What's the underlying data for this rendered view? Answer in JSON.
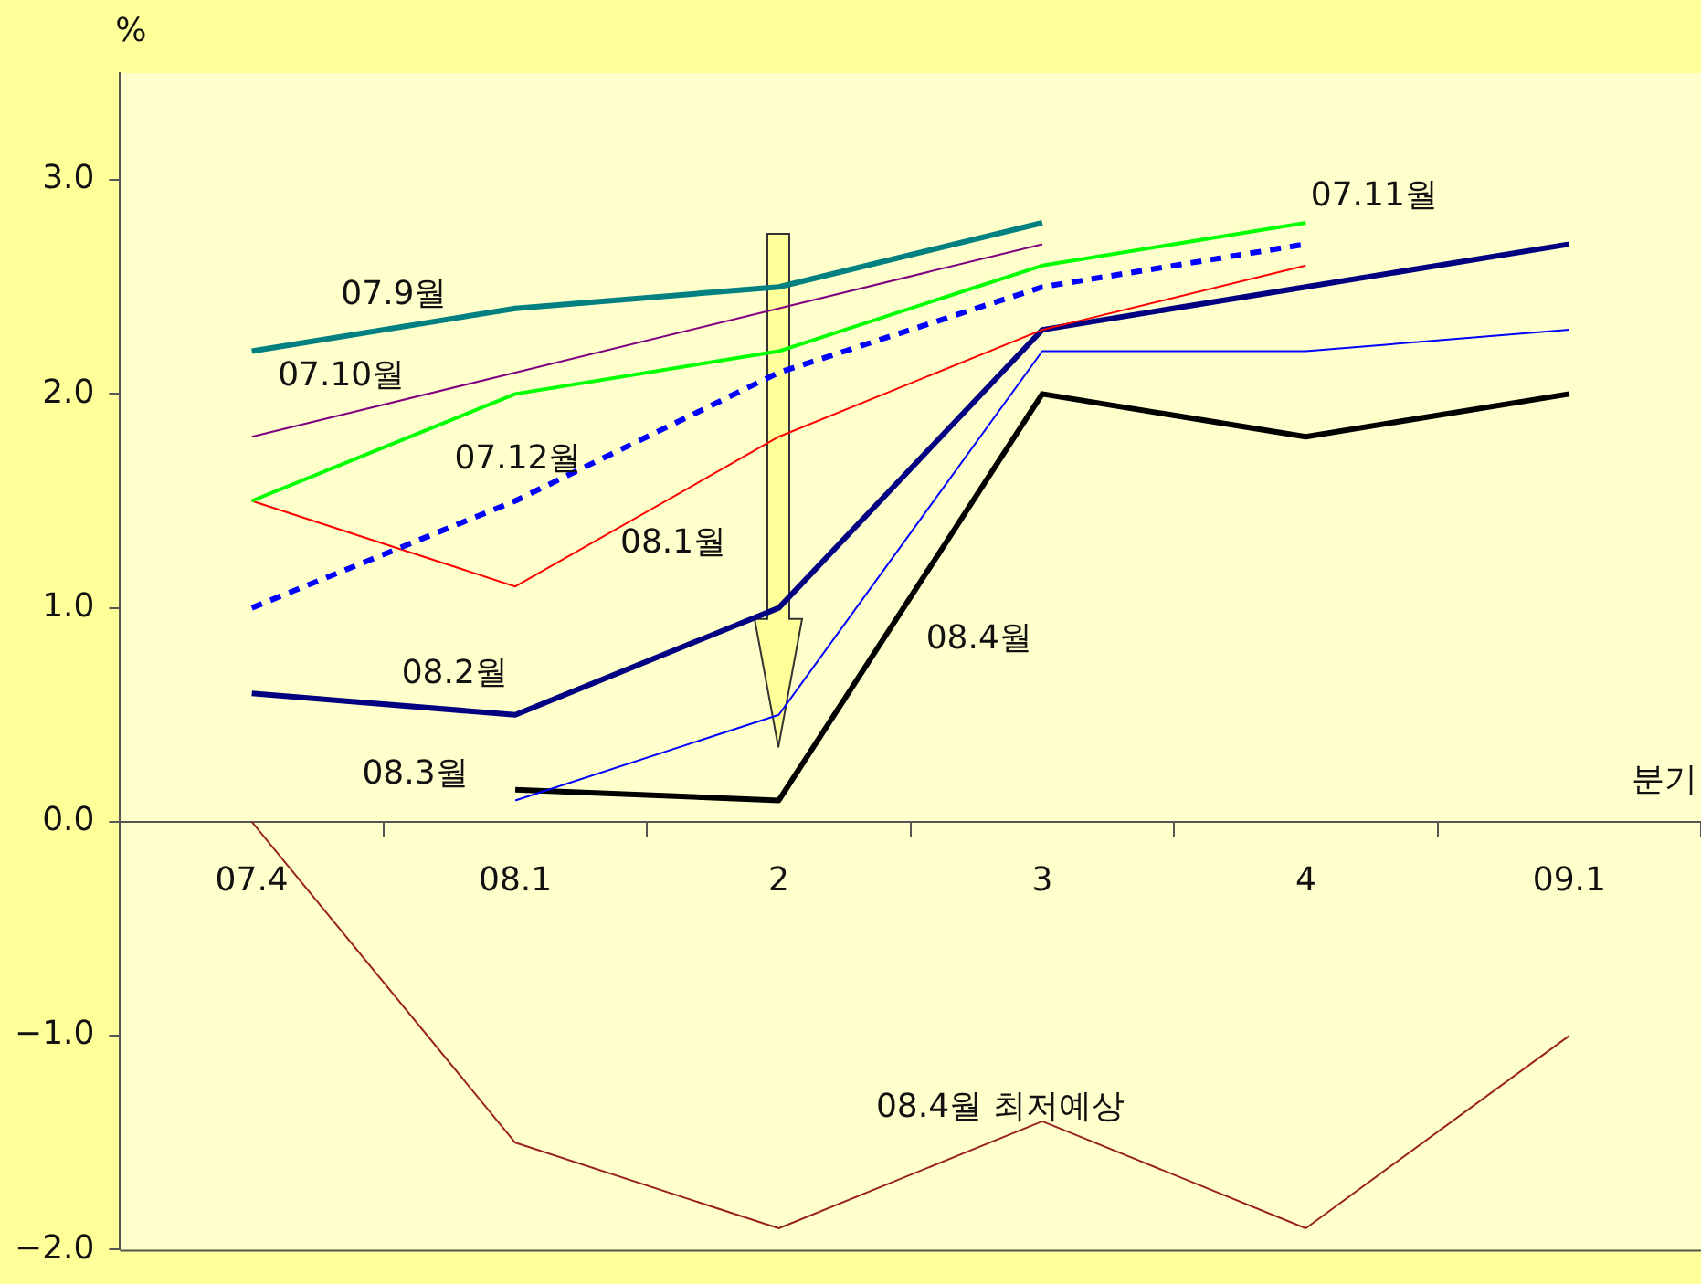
{
  "chart_data": {
    "type": "line",
    "ylabel": "%",
    "xlabel": "분기",
    "categories": [
      "07.4",
      "08.1",
      "2",
      "3",
      "4",
      "09.1"
    ],
    "ylim": [
      -2,
      3.5
    ],
    "yticks": [
      {
        "value": -2,
        "label": "−2.0"
      },
      {
        "value": -1,
        "label": "−1.0"
      },
      {
        "value": 0,
        "label": "0.0"
      },
      {
        "value": 1,
        "label": "1.0"
      },
      {
        "value": 2,
        "label": "2.0"
      },
      {
        "value": 3,
        "label": "3.0"
      }
    ],
    "grid": false,
    "legend": false,
    "marker": "none",
    "series": [
      {
        "name": "07.9월",
        "color": "#008080",
        "values": [
          2.2,
          2.4,
          2.5,
          2.8,
          null,
          null
        ]
      },
      {
        "name": "07.10월",
        "color": "#800080",
        "values": [
          1.8,
          2.1,
          2.4,
          2.7,
          null,
          null
        ]
      },
      {
        "name": "07.11월",
        "color": "#00ff00",
        "values": [
          1.5,
          2.0,
          2.2,
          2.6,
          2.8,
          null
        ]
      },
      {
        "name": "07.12월",
        "color": "#0000ff",
        "line_style": "dashed",
        "values": [
          1.0,
          1.5,
          2.1,
          2.5,
          2.7,
          null
        ]
      },
      {
        "name": "08.1월",
        "color": "#ff0000",
        "values": [
          1.5,
          1.1,
          1.8,
          2.3,
          2.6,
          null
        ]
      },
      {
        "name": "08.2월",
        "color": "#000080",
        "values": [
          0.6,
          0.5,
          1.0,
          2.3,
          2.5,
          2.7
        ]
      },
      {
        "name": "08.3월",
        "color": "#0000ff",
        "values": [
          null,
          0.1,
          0.5,
          2.2,
          2.2,
          2.3
        ]
      },
      {
        "name": "08.4월",
        "color": "#000000",
        "values": [
          null,
          0.15,
          0.1,
          2.0,
          1.8,
          2.0
        ]
      },
      {
        "name": "08.4월 최저예상",
        "color": "#992222",
        "values": [
          0.0,
          -1.5,
          -1.9,
          -1.4,
          -1.9,
          -1.0
        ]
      }
    ]
  }
}
